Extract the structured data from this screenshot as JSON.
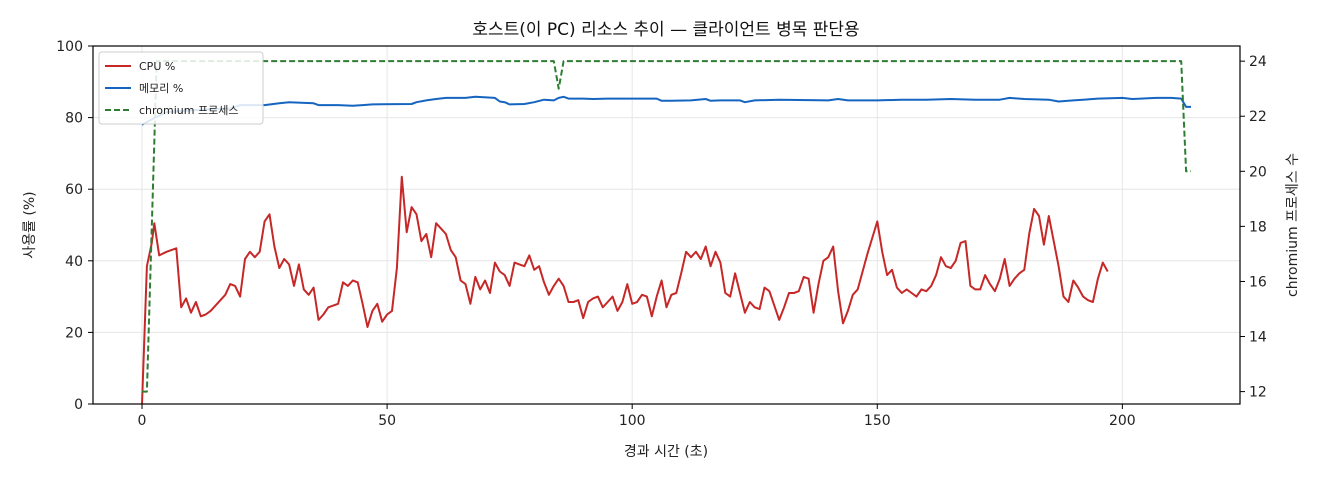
{
  "chart_data": {
    "type": "line",
    "title": "호스트(이 PC) 리소스 추이 — 클라이언트 병목 판단용",
    "xlabel": "경과 시간 (초)",
    "ylabel": "사용률 (%)",
    "y2label": "chromium 프로세스 수",
    "xlim": [
      -10,
      224
    ],
    "ylim": [
      0,
      100
    ],
    "y2lim": [
      11.55,
      24.55
    ],
    "xticks": [
      0,
      50,
      100,
      150,
      200
    ],
    "yticks": [
      0,
      20,
      40,
      60,
      80,
      100
    ],
    "y2ticks": [
      12,
      14,
      16,
      18,
      20,
      22,
      24
    ],
    "grid": true,
    "legend_position": "top-left",
    "series": [
      {
        "name": "CPU %",
        "axis": "left",
        "color": "#c62828",
        "style": "solid",
        "points": [
          [
            0,
            0
          ],
          [
            1,
            38.5
          ],
          [
            2,
            45
          ],
          [
            2.5,
            50.5
          ],
          [
            3.5,
            41.5
          ],
          [
            5,
            42.5
          ],
          [
            7,
            43.5
          ],
          [
            8,
            27
          ],
          [
            9,
            29.5
          ],
          [
            10,
            25.5
          ],
          [
            11,
            28.5
          ],
          [
            12,
            24.5
          ],
          [
            13,
            25
          ],
          [
            14,
            26
          ],
          [
            15,
            27.5
          ],
          [
            16,
            29
          ],
          [
            17,
            30.5
          ],
          [
            18,
            33.5
          ],
          [
            19,
            33
          ],
          [
            20,
            30
          ],
          [
            21,
            40.5
          ],
          [
            22,
            42.5
          ],
          [
            23,
            41
          ],
          [
            24,
            42.5
          ],
          [
            25,
            51
          ],
          [
            26,
            53
          ],
          [
            27,
            44
          ],
          [
            28,
            38
          ],
          [
            29,
            40.5
          ],
          [
            30,
            39
          ],
          [
            31,
            33
          ],
          [
            32,
            39
          ],
          [
            33,
            32
          ],
          [
            34,
            30.5
          ],
          [
            35,
            32.5
          ],
          [
            36,
            23.5
          ],
          [
            37,
            25
          ],
          [
            38,
            27
          ],
          [
            39,
            27.5
          ],
          [
            40,
            28
          ],
          [
            41,
            34
          ],
          [
            42,
            33
          ],
          [
            43,
            34.5
          ],
          [
            44,
            34
          ],
          [
            45,
            28
          ],
          [
            46,
            21.5
          ],
          [
            47,
            26
          ],
          [
            48,
            28
          ],
          [
            49,
            23
          ],
          [
            50,
            25
          ],
          [
            51,
            26
          ],
          [
            52,
            38
          ],
          [
            53,
            63.5
          ],
          [
            54,
            48
          ],
          [
            55,
            55
          ],
          [
            56,
            53
          ],
          [
            57,
            45.5
          ],
          [
            58,
            47.5
          ],
          [
            59,
            41
          ],
          [
            60,
            50.5
          ],
          [
            61,
            49
          ],
          [
            62,
            47.5
          ],
          [
            63,
            43
          ],
          [
            64,
            41
          ],
          [
            65,
            34.5
          ],
          [
            66,
            33.5
          ],
          [
            67,
            28
          ],
          [
            68,
            35.5
          ],
          [
            69,
            32
          ],
          [
            70,
            34.5
          ],
          [
            71,
            31
          ],
          [
            72,
            39.5
          ],
          [
            73,
            37
          ],
          [
            74,
            36
          ],
          [
            75,
            33
          ],
          [
            76,
            39.5
          ],
          [
            77,
            39
          ],
          [
            78,
            38.5
          ],
          [
            79,
            41.5
          ],
          [
            80,
            37.5
          ],
          [
            81,
            38.5
          ],
          [
            82,
            34
          ],
          [
            83,
            30.5
          ],
          [
            84,
            33
          ],
          [
            85,
            35
          ],
          [
            86,
            33
          ],
          [
            87,
            28.5
          ],
          [
            88,
            28.5
          ],
          [
            89,
            29
          ],
          [
            90,
            24
          ],
          [
            91,
            28.5
          ],
          [
            92,
            29.5
          ],
          [
            93,
            30
          ],
          [
            94,
            27
          ],
          [
            95,
            28.5
          ],
          [
            96,
            30
          ],
          [
            97,
            26
          ],
          [
            98,
            28.5
          ],
          [
            99,
            33.5
          ],
          [
            100,
            28
          ],
          [
            101,
            28.5
          ],
          [
            102,
            30.5
          ],
          [
            103,
            30
          ],
          [
            104,
            24.5
          ],
          [
            105,
            30
          ],
          [
            106,
            34.5
          ],
          [
            107,
            27
          ],
          [
            108,
            30.5
          ],
          [
            109,
            31
          ],
          [
            110,
            36.5
          ],
          [
            111,
            42.5
          ],
          [
            112,
            41
          ],
          [
            113,
            42.5
          ],
          [
            114,
            40.5
          ],
          [
            115,
            44
          ],
          [
            116,
            38.5
          ],
          [
            117,
            42.5
          ],
          [
            118,
            39.5
          ],
          [
            119,
            31
          ],
          [
            120,
            30
          ],
          [
            121,
            36.5
          ],
          [
            122,
            31
          ],
          [
            123,
            25.5
          ],
          [
            124,
            28.5
          ],
          [
            125,
            27
          ],
          [
            126,
            26.5
          ],
          [
            127,
            32.5
          ],
          [
            128,
            31.5
          ],
          [
            129,
            27.5
          ],
          [
            130,
            23.5
          ],
          [
            131,
            27
          ],
          [
            132,
            31
          ],
          [
            133,
            31
          ],
          [
            134,
            31.5
          ],
          [
            135,
            35.5
          ],
          [
            136,
            35
          ],
          [
            137,
            25.5
          ],
          [
            138,
            33.5
          ],
          [
            139,
            40
          ],
          [
            140,
            41
          ],
          [
            141,
            44
          ],
          [
            142,
            31.5
          ],
          [
            143,
            22.5
          ],
          [
            144,
            26
          ],
          [
            145,
            30.5
          ],
          [
            146,
            32
          ],
          [
            147,
            37
          ],
          [
            148,
            42
          ],
          [
            149,
            46.5
          ],
          [
            150,
            51
          ],
          [
            151,
            42.5
          ],
          [
            152,
            36
          ],
          [
            153,
            37.5
          ],
          [
            154,
            32.5
          ],
          [
            155,
            31
          ],
          [
            156,
            32
          ],
          [
            157,
            31
          ],
          [
            158,
            30
          ],
          [
            159,
            32
          ],
          [
            160,
            31.5
          ],
          [
            161,
            33
          ],
          [
            162,
            36
          ],
          [
            163,
            41
          ],
          [
            164,
            38.5
          ],
          [
            165,
            38
          ],
          [
            166,
            40
          ],
          [
            167,
            45
          ],
          [
            168,
            45.5
          ],
          [
            169,
            33
          ],
          [
            170,
            32
          ],
          [
            171,
            32
          ],
          [
            172,
            36
          ],
          [
            173,
            33.5
          ],
          [
            174,
            31.5
          ],
          [
            175,
            35
          ],
          [
            176,
            40.5
          ],
          [
            177,
            33
          ],
          [
            178,
            35
          ],
          [
            179,
            36.5
          ],
          [
            180,
            37.5
          ],
          [
            181,
            47.5
          ],
          [
            182,
            54.5
          ],
          [
            183,
            52.5
          ],
          [
            184,
            44.5
          ],
          [
            185,
            52.5
          ],
          [
            186,
            45.5
          ],
          [
            187,
            38.5
          ],
          [
            188,
            30
          ],
          [
            189,
            28.5
          ],
          [
            190,
            34.5
          ],
          [
            191,
            32.5
          ],
          [
            192,
            30
          ],
          [
            193,
            29
          ],
          [
            194,
            28.5
          ],
          [
            195,
            35
          ],
          [
            196,
            39.5
          ],
          [
            197,
            37
          ]
        ]
      },
      {
        "name": "메모리 %",
        "axis": "left",
        "color": "#1565c0",
        "style": "solid",
        "points": [
          [
            0,
            78
          ],
          [
            2,
            79.5
          ],
          [
            5,
            81.5
          ],
          [
            10,
            82
          ],
          [
            15,
            82.5
          ],
          [
            18,
            82.5
          ],
          [
            20,
            83.5
          ],
          [
            25,
            83.5
          ],
          [
            28,
            84
          ],
          [
            30,
            84.3
          ],
          [
            35,
            84
          ],
          [
            36,
            83.5
          ],
          [
            40,
            83.5
          ],
          [
            43,
            83.3
          ],
          [
            45,
            83.5
          ],
          [
            47,
            83.7
          ],
          [
            55,
            83.8
          ],
          [
            56,
            84.3
          ],
          [
            58,
            84.8
          ],
          [
            60,
            85.2
          ],
          [
            62,
            85.5
          ],
          [
            66,
            85.5
          ],
          [
            68,
            85.8
          ],
          [
            72,
            85.5
          ],
          [
            73,
            84.5
          ],
          [
            74,
            84.3
          ],
          [
            75,
            83.7
          ],
          [
            78,
            83.8
          ],
          [
            80,
            84.3
          ],
          [
            82,
            85
          ],
          [
            84,
            84.8
          ],
          [
            85,
            85.5
          ],
          [
            86,
            85.8
          ],
          [
            87,
            85.3
          ],
          [
            90,
            85.3
          ],
          [
            92,
            85.2
          ],
          [
            95,
            85.3
          ],
          [
            105,
            85.3
          ],
          [
            106,
            84.7
          ],
          [
            108,
            84.7
          ],
          [
            112,
            84.8
          ],
          [
            115,
            85.2
          ],
          [
            116,
            84.7
          ],
          [
            118,
            84.8
          ],
          [
            122,
            84.8
          ],
          [
            123,
            84.3
          ],
          [
            125,
            84.8
          ],
          [
            130,
            85
          ],
          [
            140,
            84.8
          ],
          [
            142,
            85.2
          ],
          [
            144,
            84.8
          ],
          [
            150,
            84.8
          ],
          [
            155,
            85
          ],
          [
            160,
            85
          ],
          [
            165,
            85.2
          ],
          [
            170,
            85
          ],
          [
            175,
            85
          ],
          [
            177,
            85.5
          ],
          [
            180,
            85.2
          ],
          [
            185,
            85
          ],
          [
            187,
            84.5
          ],
          [
            190,
            84.8
          ],
          [
            192,
            85
          ],
          [
            195,
            85.3
          ],
          [
            200,
            85.5
          ],
          [
            202,
            85.2
          ],
          [
            207,
            85.5
          ],
          [
            210,
            85.5
          ],
          [
            212,
            85.3
          ],
          [
            213,
            83
          ],
          [
            214,
            83
          ]
        ]
      },
      {
        "name": "chromium 프로세스",
        "axis": "right",
        "color": "#2e7d32",
        "style": "dashed",
        "points": [
          [
            0,
            12
          ],
          [
            1,
            12
          ],
          [
            2,
            18
          ],
          [
            3,
            24
          ],
          [
            84,
            24
          ],
          [
            85,
            23
          ],
          [
            86,
            24
          ],
          [
            212,
            24
          ],
          [
            213,
            20
          ],
          [
            214,
            20
          ]
        ]
      }
    ]
  }
}
